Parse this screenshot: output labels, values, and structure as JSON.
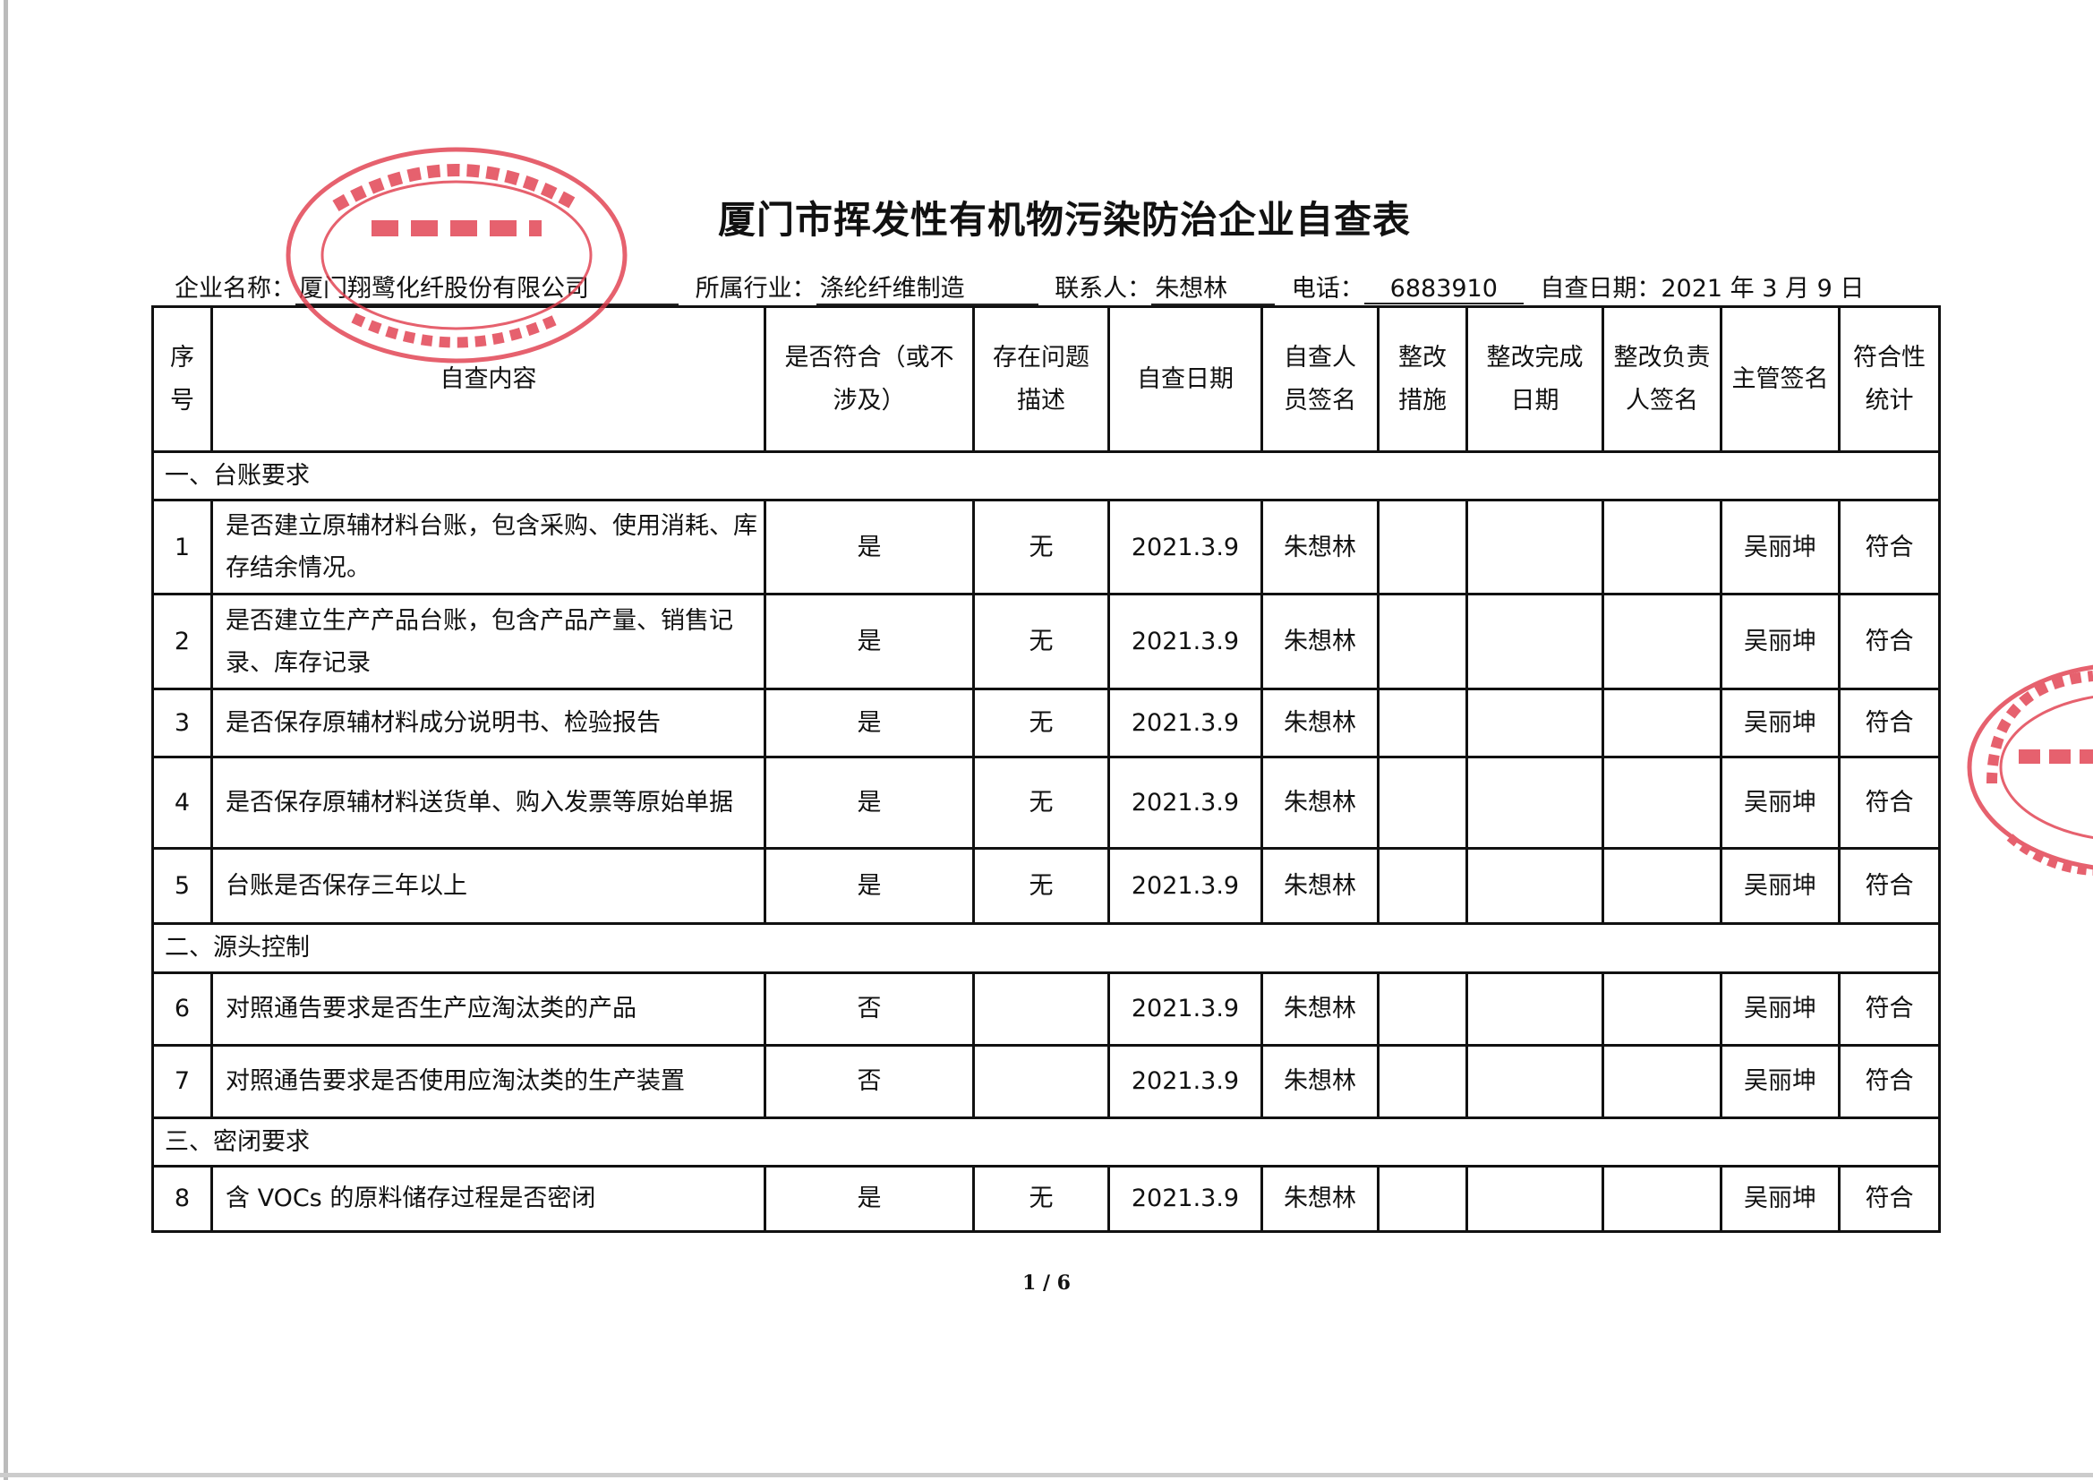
{
  "title": "厦门市挥发性有机物污染防治企业自查表",
  "info": {
    "company_label": "企业名称：",
    "company": "厦门翔鹭化纤股份有限公司",
    "industry_label": "所属行业：",
    "industry": "涤纶纤维制造",
    "contact_label": "联系人：",
    "contact": "朱想林",
    "phone_label": "电话：",
    "phone": "6883910",
    "date_label": "自查日期：",
    "date": "2021 年 3 月 9 日"
  },
  "headers": [
    "序号",
    "自查内容",
    "是否符合（或不涉及）",
    "存在问题描述",
    "自查日期",
    "自查人员签名",
    "整改措施",
    "整改完成日期",
    "整改负责人签名",
    "主管签名",
    "符合性统计"
  ],
  "sections": [
    {
      "title": "一、台账要求",
      "rows": [
        {
          "no": "1",
          "content": "是否建立原辅材料台账，包含采购、使用消耗、库存结余情况。",
          "comply": "是",
          "issue": "无",
          "date": "2021.3.9",
          "checker": "朱想林",
          "measure": "",
          "done": "",
          "owner": "",
          "supervisor": "吴丽坤",
          "stat": "符合"
        },
        {
          "no": "2",
          "content": "是否建立生产产品台账，包含产品产量、销售记录、库存记录",
          "comply": "是",
          "issue": "无",
          "date": "2021.3.9",
          "checker": "朱想林",
          "measure": "",
          "done": "",
          "owner": "",
          "supervisor": "吴丽坤",
          "stat": "符合"
        },
        {
          "no": "3",
          "content": "是否保存原辅材料成分说明书、检验报告",
          "comply": "是",
          "issue": "无",
          "date": "2021.3.9",
          "checker": "朱想林",
          "measure": "",
          "done": "",
          "owner": "",
          "supervisor": "吴丽坤",
          "stat": "符合"
        },
        {
          "no": "4",
          "content": "是否保存原辅材料送货单、购入发票等原始单据",
          "comply": "是",
          "issue": "无",
          "date": "2021.3.9",
          "checker": "朱想林",
          "measure": "",
          "done": "",
          "owner": "",
          "supervisor": "吴丽坤",
          "stat": "符合"
        },
        {
          "no": "5",
          "content": "台账是否保存三年以上",
          "comply": "是",
          "issue": "无",
          "date": "2021.3.9",
          "checker": "朱想林",
          "measure": "",
          "done": "",
          "owner": "",
          "supervisor": "吴丽坤",
          "stat": "符合"
        }
      ]
    },
    {
      "title": "二、源头控制",
      "rows": [
        {
          "no": "6",
          "content": "对照通告要求是否生产应淘汰类的产品",
          "comply": "否",
          "issue": "",
          "date": "2021.3.9",
          "checker": "朱想林",
          "measure": "",
          "done": "",
          "owner": "",
          "supervisor": "吴丽坤",
          "stat": "符合"
        },
        {
          "no": "7",
          "content": "对照通告要求是否使用应淘汰类的生产装置",
          "comply": "否",
          "issue": "",
          "date": "2021.3.9",
          "checker": "朱想林",
          "measure": "",
          "done": "",
          "owner": "",
          "supervisor": "吴丽坤",
          "stat": "符合"
        }
      ]
    },
    {
      "title": "三、密闭要求",
      "rows": [
        {
          "no": "8",
          "content": "含 VOCs 的原料储存过程是否密闭",
          "comply": "是",
          "issue": "无",
          "date": "2021.3.9",
          "checker": "朱想林",
          "measure": "",
          "done": "",
          "owner": "",
          "supervisor": "吴丽坤",
          "stat": "符合"
        }
      ]
    }
  ],
  "page_number": "1 / 6",
  "stamps": {
    "main": {
      "outer_top": "XIANGLU CHEMICAL FIBER COMPANY",
      "center": "厦门翔鹭化纤股份有限公司",
      "bottom": "XIAMEN LIMITED"
    },
    "color": "#e03a4a"
  }
}
